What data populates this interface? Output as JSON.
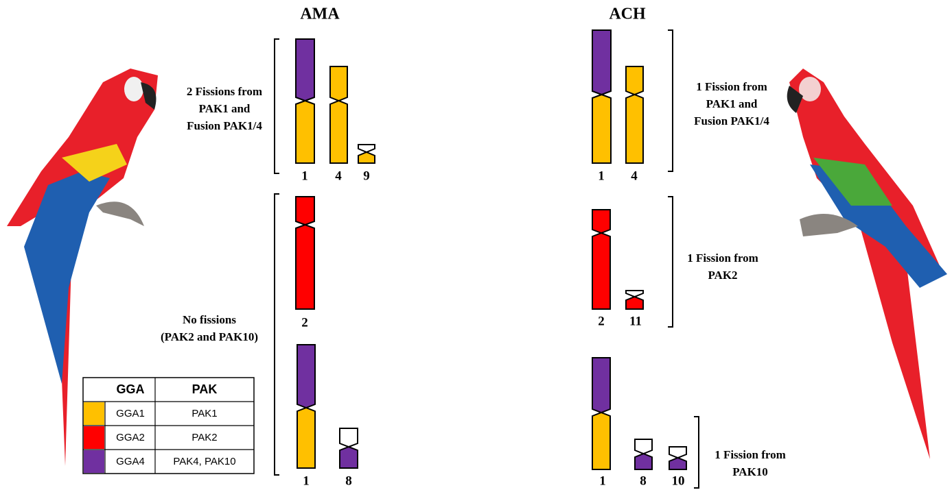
{
  "panels": [
    {
      "title": "AMA",
      "notes": [
        [
          "2 Fissions from",
          "PAK1 and",
          "Fusion PAK1/4"
        ],
        [
          "No fissions",
          "(PAK2 and PAK10)"
        ]
      ],
      "groups": [
        [
          "1",
          "4",
          "9"
        ],
        [
          "2"
        ],
        [
          "1",
          "8"
        ]
      ]
    },
    {
      "title": "ACH",
      "notes": [
        [
          "1 Fission from",
          "PAK1 and",
          "Fusion PAK1/4"
        ],
        [
          "1 Fission from",
          "PAK2"
        ],
        [
          "1 Fission from",
          "PAK10"
        ]
      ],
      "groups": [
        [
          "1",
          "4"
        ],
        [
          "2",
          "11"
        ],
        [
          "1",
          "8",
          "10"
        ]
      ]
    }
  ],
  "legend": {
    "header": [
      "GGA",
      "PAK"
    ],
    "rows": [
      [
        "GGA1",
        "PAK1"
      ],
      [
        "GGA2",
        "PAK2"
      ],
      [
        "GGA4",
        "PAK4, PAK10"
      ]
    ]
  }
}
